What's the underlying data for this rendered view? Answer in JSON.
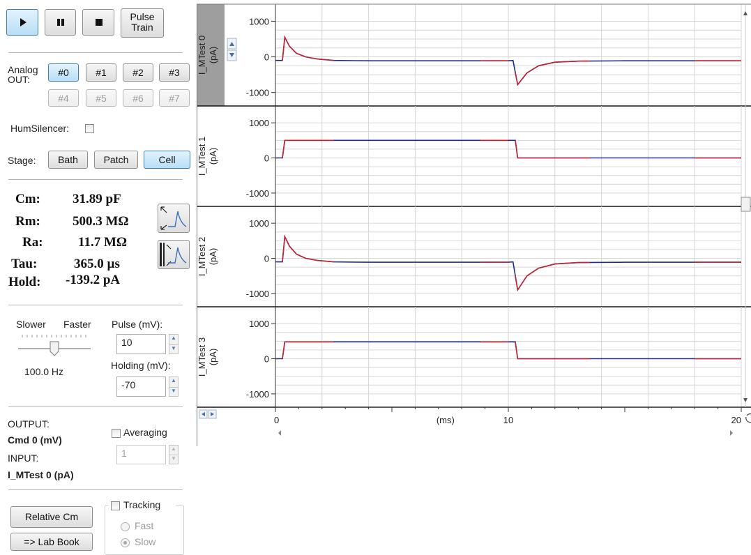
{
  "toolbar": {
    "play": "play-icon",
    "pause": "pause-icon",
    "stop": "stop-icon",
    "pulse_train_line1": "Pulse",
    "pulse_train_line2": "Train"
  },
  "analog_out": {
    "label_line1": "Analog",
    "label_line2": "OUT:",
    "channels_row1": [
      "#0",
      "#1",
      "#2",
      "#3"
    ],
    "channels_row2": [
      "#4",
      "#5",
      "#6",
      "#7"
    ],
    "selected": "#0"
  },
  "hum_silencer": {
    "label": "HumSilencer:",
    "checked": false
  },
  "stage": {
    "label": "Stage:",
    "options": [
      "Bath",
      "Patch",
      "Cell"
    ],
    "selected": "Cell"
  },
  "params": [
    {
      "name": "Cm:",
      "value": "31.89 pF"
    },
    {
      "name": "Rm:",
      "value": "500.3 MΩ"
    },
    {
      "name": "Ra:",
      "value": "11.7 MΩ"
    },
    {
      "name": "Tau:",
      "value": "365.0 µs"
    },
    {
      "name": "Hold:",
      "value": "-139.2 pA"
    }
  ],
  "rate": {
    "slower": "Slower",
    "faster": "Faster",
    "value": "100.0 Hz",
    "level": 0.5
  },
  "pulse": {
    "label": "Pulse (mV):",
    "value": "10"
  },
  "holding": {
    "label": "Holding (mV):",
    "value": "-70"
  },
  "io": {
    "output_label": "OUTPUT:",
    "output_value": "Cmd 0 (mV)",
    "input_label": "INPUT:",
    "input_value": "I_MTest 0 (pA)",
    "averaging_label": "Averaging",
    "averaging_checked": false,
    "averaging_value": "1"
  },
  "buttons": {
    "relative_cm": "Relative Cm",
    "lab_book": "=> Lab Book"
  },
  "tracking": {
    "label": "Tracking",
    "checked": false,
    "fast": "Fast",
    "slow": "Slow",
    "selected": "Slow"
  },
  "colors": {
    "trace": "#1f2a8c",
    "fit": "#e02020",
    "grid": "#d6d6d6",
    "selected_channel_bg": "#9e9e9e"
  },
  "chart_data": {
    "type": "line",
    "xlabel": "(ms)",
    "xlim": [
      0,
      20
    ],
    "x_ticks": [
      "0",
      "10",
      "20"
    ],
    "y_ticks": [
      "1000",
      "0",
      "-1000"
    ],
    "ylim": [
      -1300,
      1400
    ],
    "channels": [
      {
        "label_line1": "I_MTest 0",
        "label_line2": "(pA)",
        "selected": true,
        "series": {
          "x": [
            0,
            0.3,
            0.4,
            0.6,
            0.9,
            1.3,
            1.8,
            2.5,
            4,
            6,
            8,
            10.0,
            10.2,
            10.4,
            10.8,
            11.3,
            12,
            13,
            15,
            18,
            20
          ],
          "y": [
            -100,
            -100,
            550,
            300,
            100,
            0,
            -60,
            -100,
            -110,
            -110,
            -110,
            -110,
            -100,
            -780,
            -450,
            -250,
            -150,
            -120,
            -110,
            -110,
            -110
          ]
        }
      },
      {
        "label_line1": "I_MTest 1",
        "label_line2": "(pA)",
        "selected": false,
        "series": {
          "x": [
            0,
            0.3,
            0.4,
            5,
            10.0,
            10.3,
            10.4,
            15,
            20
          ],
          "y": [
            0,
            0,
            500,
            500,
            500,
            500,
            0,
            0,
            0
          ]
        }
      },
      {
        "label_line1": "I_MTest 2",
        "label_line2": "(pA)",
        "selected": false,
        "series": {
          "x": [
            0,
            0.3,
            0.4,
            0.6,
            0.9,
            1.3,
            1.8,
            2.5,
            4,
            6,
            8,
            10.0,
            10.2,
            10.4,
            10.8,
            11.3,
            12,
            13,
            15,
            18,
            20
          ],
          "y": [
            -100,
            -100,
            620,
            350,
            120,
            0,
            -60,
            -100,
            -110,
            -110,
            -110,
            -110,
            -100,
            -900,
            -500,
            -280,
            -160,
            -120,
            -110,
            -110,
            -110
          ]
        }
      },
      {
        "label_line1": "I_MTest 3",
        "label_line2": "(pA)",
        "selected": false,
        "series": {
          "x": [
            0,
            0.3,
            0.4,
            5,
            10.0,
            10.3,
            10.4,
            15,
            20
          ],
          "y": [
            0,
            0,
            480,
            480,
            480,
            480,
            0,
            0,
            0
          ]
        }
      }
    ],
    "fit_segments_x": [
      [
        0.3,
        2.5
      ],
      [
        8.8,
        10.0
      ],
      [
        10.3,
        13.5
      ],
      [
        18.0,
        20.0
      ]
    ]
  }
}
